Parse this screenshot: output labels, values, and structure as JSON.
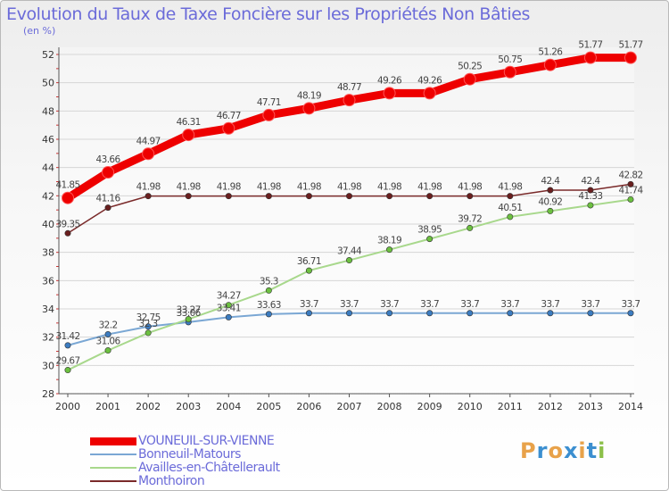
{
  "title": "Evolution du Taux de Taxe Foncière sur les Propriétés Non Bâties",
  "unit": "(en %)",
  "brand": {
    "letters": [
      "P",
      "r",
      "o",
      "x",
      "i",
      "t",
      "i"
    ],
    "colors": [
      "#e8a24a",
      "#3c8fd0",
      "#e8a24a",
      "#3c8fd0",
      "#e8a24a",
      "#3c8fd0",
      "#8cc04a"
    ]
  },
  "chart_data": {
    "type": "line",
    "x": [
      2000,
      2001,
      2002,
      2003,
      2004,
      2005,
      2006,
      2007,
      2008,
      2009,
      2010,
      2011,
      2012,
      2013,
      2014
    ],
    "ylim": [
      28,
      52
    ],
    "yticks": [
      28,
      30,
      32,
      34,
      36,
      38,
      40,
      42,
      44,
      46,
      48,
      50,
      52
    ],
    "grid": true,
    "legend": "bottom-left",
    "series": [
      {
        "name": "VOUNEUIL-SUR-VIENNE",
        "color": "#ee0000",
        "width": 9,
        "labels": [
          "41.85",
          "43.66",
          "44.97",
          "46.31",
          "46.77",
          "47.71",
          "48.19",
          "48.77",
          "49.26",
          "49.26",
          "50.25",
          "50.75",
          "51.26",
          "51.77",
          "51.77"
        ],
        "values": [
          41.85,
          43.66,
          44.97,
          46.31,
          46.77,
          47.71,
          48.19,
          48.77,
          49.26,
          49.26,
          50.25,
          50.75,
          51.26,
          51.77,
          51.77
        ]
      },
      {
        "name": "Bonneuil-Matours",
        "color": "#7aa7d4",
        "width": 2,
        "labels": [
          "31.42",
          "32.2",
          "32.75",
          "33.06",
          "33.41",
          "33.63",
          "33.7",
          "33.7",
          "33.7",
          "33.7",
          "33.7",
          "33.7",
          "33.7",
          "33.7",
          "33.7"
        ],
        "values": [
          31.42,
          32.2,
          32.75,
          33.06,
          33.41,
          33.63,
          33.7,
          33.7,
          33.7,
          33.7,
          33.7,
          33.7,
          33.7,
          33.7,
          33.7
        ]
      },
      {
        "name": "Availles-en-Châtellerault",
        "color": "#a8d88c",
        "width": 2,
        "labels": [
          "29.67",
          "31.06",
          "32.3",
          "33.27",
          "34.27",
          "35.3",
          "36.71",
          "37.44",
          "38.19",
          "38.95",
          "39.72",
          "40.51",
          "40.92",
          "41.33",
          "41.74"
        ],
        "values": [
          29.67,
          31.06,
          32.3,
          33.27,
          34.27,
          35.3,
          36.71,
          37.44,
          38.19,
          38.95,
          39.72,
          40.51,
          40.92,
          41.33,
          41.74
        ]
      },
      {
        "name": "Monthoiron",
        "color": "#7a2a2a",
        "width": 1.5,
        "labels": [
          "39.35",
          "41.16",
          "41.98",
          "41.98",
          "41.98",
          "41.98",
          "41.98",
          "41.98",
          "41.98",
          "41.98",
          "41.98",
          "41.98",
          "42.4",
          "42.4",
          "42.82"
        ],
        "values": [
          39.35,
          41.16,
          41.98,
          41.98,
          41.98,
          41.98,
          41.98,
          41.98,
          41.98,
          41.98,
          41.98,
          41.98,
          42.4,
          42.4,
          42.82
        ]
      }
    ]
  }
}
